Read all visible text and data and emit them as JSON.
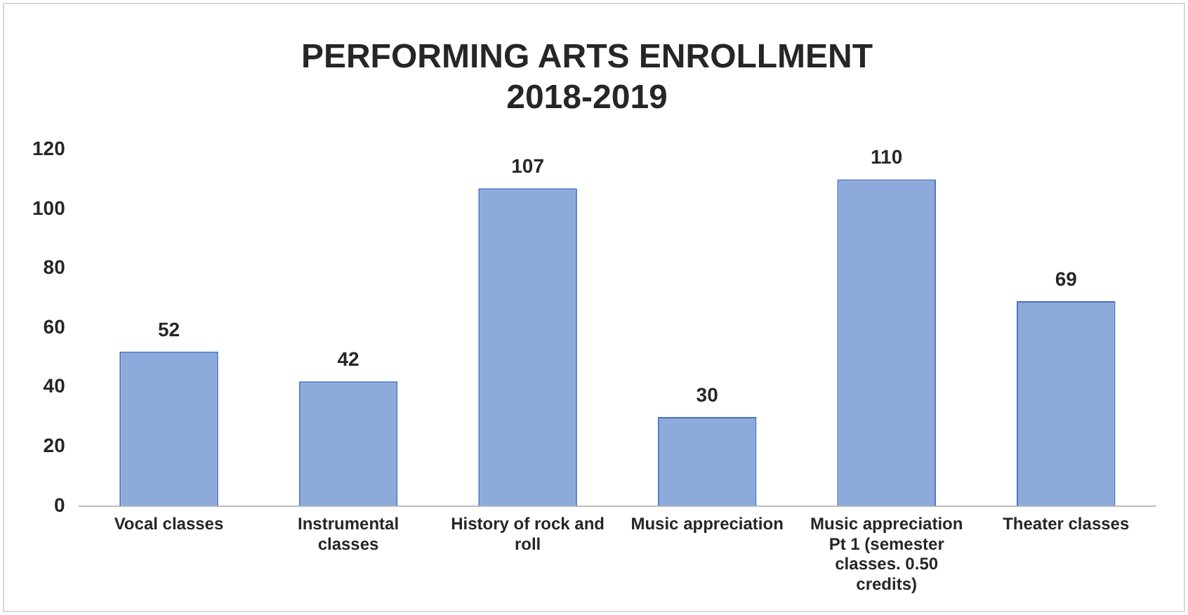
{
  "chart_data": {
    "type": "bar",
    "title": "PERFORMING ARTS ENROLLMENT\n2018-2019",
    "categories": [
      "Vocal classes",
      "Instrumental classes",
      "History of rock and roll",
      "Music appreciation",
      "Music appreciation Pt 1 (semester classes. 0.50 credits)",
      "Theater classes"
    ],
    "values": [
      52,
      42,
      107,
      30,
      110,
      69
    ],
    "color": "#8eaadb",
    "ylim": [
      0,
      120
    ],
    "yticks": [
      0,
      20,
      40,
      60,
      80,
      100,
      120
    ],
    "grid": false,
    "data_labels": true
  }
}
